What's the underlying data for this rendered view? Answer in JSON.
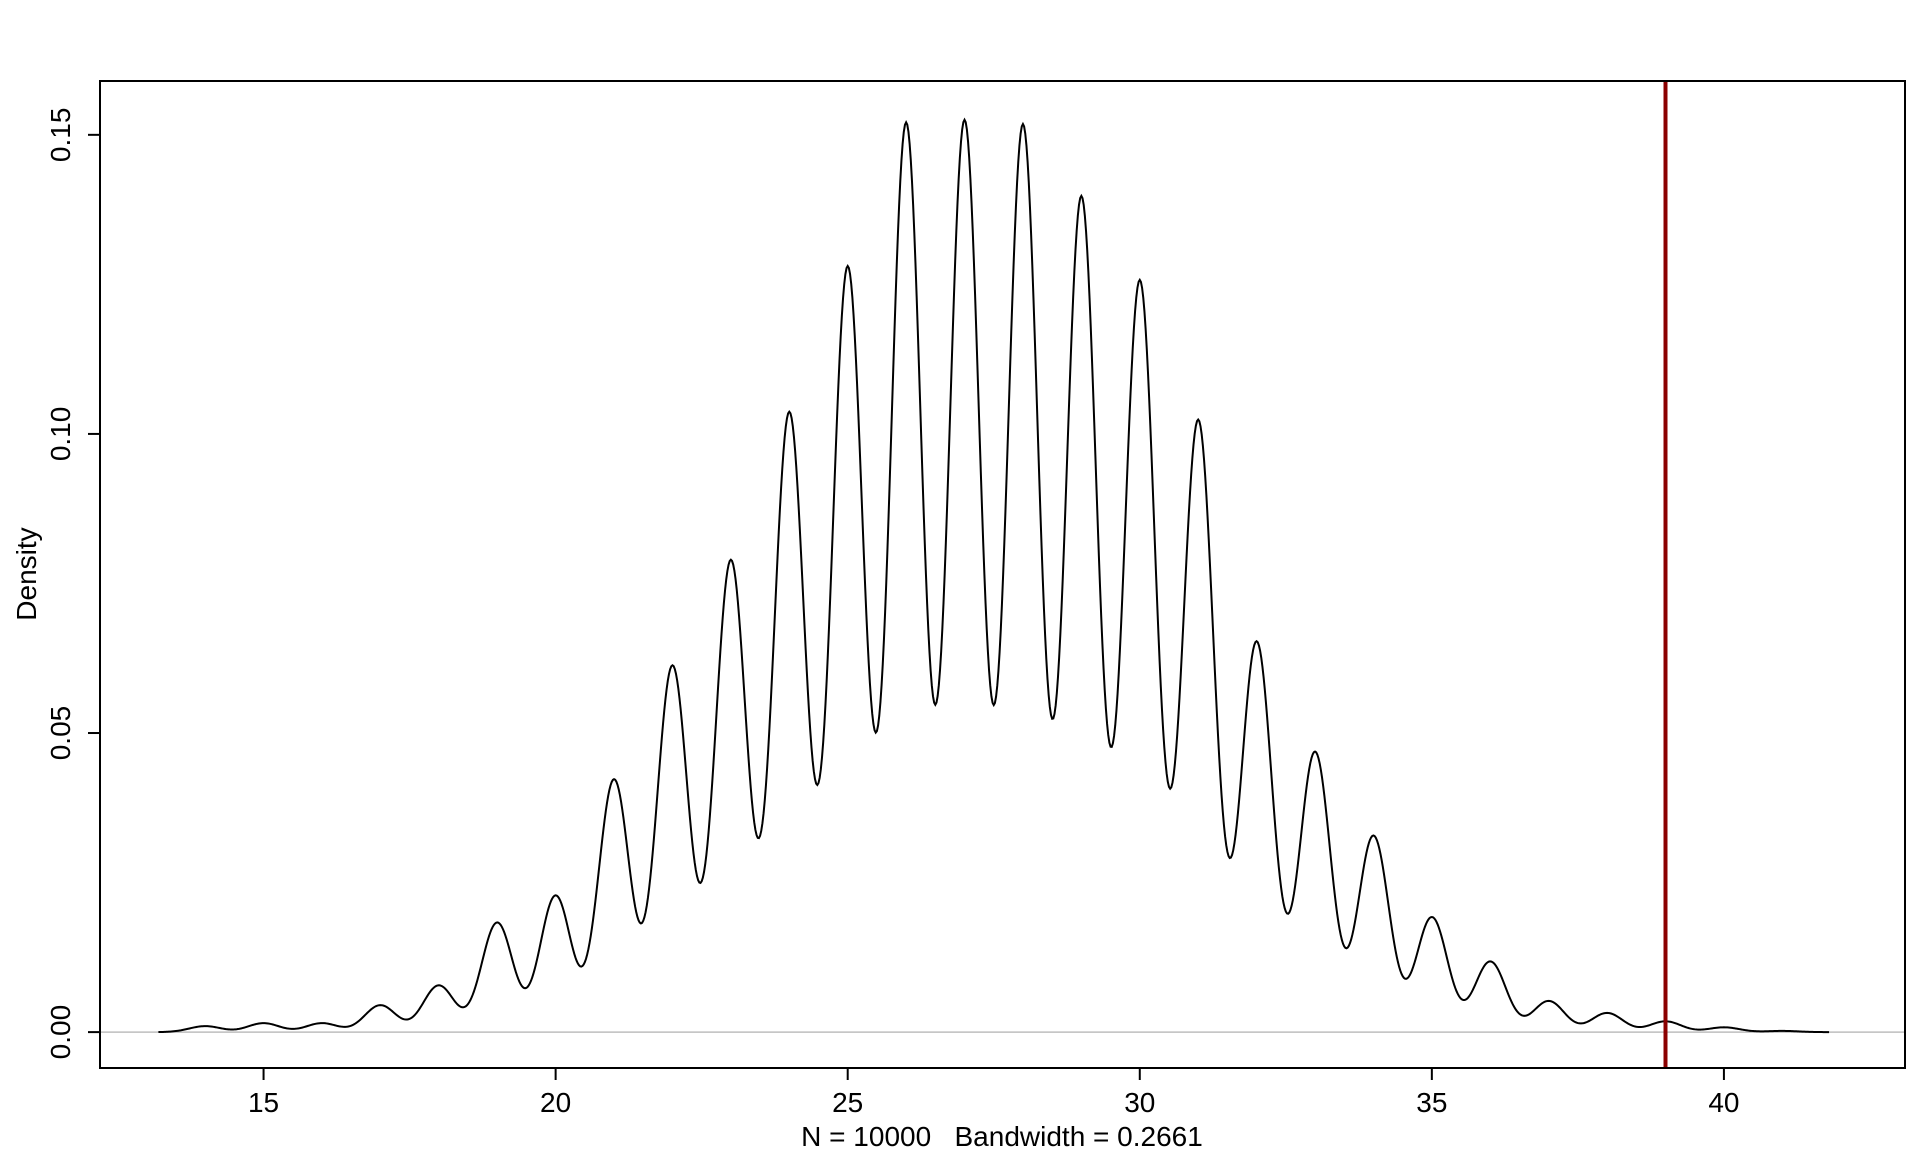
{
  "chart_data": {
    "type": "line",
    "title": "",
    "xlabel": "N = 10000   Bandwidth = 0.2661",
    "ylabel": "Density",
    "xlim": [
      12.2,
      43.1
    ],
    "ylim": [
      -0.006,
      0.159
    ],
    "x_ticks": [
      15,
      20,
      25,
      30,
      35,
      40
    ],
    "y_ticks": [
      0.0,
      0.05,
      0.1,
      0.15
    ],
    "x_tick_labels": [
      "15",
      "20",
      "25",
      "30",
      "35",
      "40"
    ],
    "y_tick_labels": [
      "0.00",
      "0.05",
      "0.10",
      "0.15"
    ],
    "grid": false,
    "series": [
      {
        "color": "#000000",
        "x_range": [
          13.2,
          41.8
        ],
        "bandwidth": 0.2661,
        "peaks": [
          {
            "x": 14,
            "y": 0.001
          },
          {
            "x": 15,
            "y": 0.0015
          },
          {
            "x": 16,
            "y": 0.0015
          },
          {
            "x": 17,
            "y": 0.0045
          },
          {
            "x": 18,
            "y": 0.0078
          },
          {
            "x": 19,
            "y": 0.0183
          },
          {
            "x": 20,
            "y": 0.0228
          },
          {
            "x": 21,
            "y": 0.0422
          },
          {
            "x": 22,
            "y": 0.0612
          },
          {
            "x": 23,
            "y": 0.0788
          },
          {
            "x": 24,
            "y": 0.1035
          },
          {
            "x": 25,
            "y": 0.1278
          },
          {
            "x": 26,
            "y": 0.1518
          },
          {
            "x": 27,
            "y": 0.1522
          },
          {
            "x": 28,
            "y": 0.1515
          },
          {
            "x": 29,
            "y": 0.1395
          },
          {
            "x": 30,
            "y": 0.1255
          },
          {
            "x": 31,
            "y": 0.1022
          },
          {
            "x": 32,
            "y": 0.0652
          },
          {
            "x": 33,
            "y": 0.0468
          },
          {
            "x": 34,
            "y": 0.0328
          },
          {
            "x": 35,
            "y": 0.0192
          },
          {
            "x": 36,
            "y": 0.0118
          },
          {
            "x": 37,
            "y": 0.0052
          },
          {
            "x": 38,
            "y": 0.0032
          },
          {
            "x": 39,
            "y": 0.0018
          },
          {
            "x": 40,
            "y": 0.0008
          },
          {
            "x": 41,
            "y": 0.0002
          }
        ]
      }
    ],
    "vline": {
      "x": 39,
      "color": "#8B0000"
    },
    "hline": {
      "y": 0,
      "color": "#bebebe"
    }
  }
}
